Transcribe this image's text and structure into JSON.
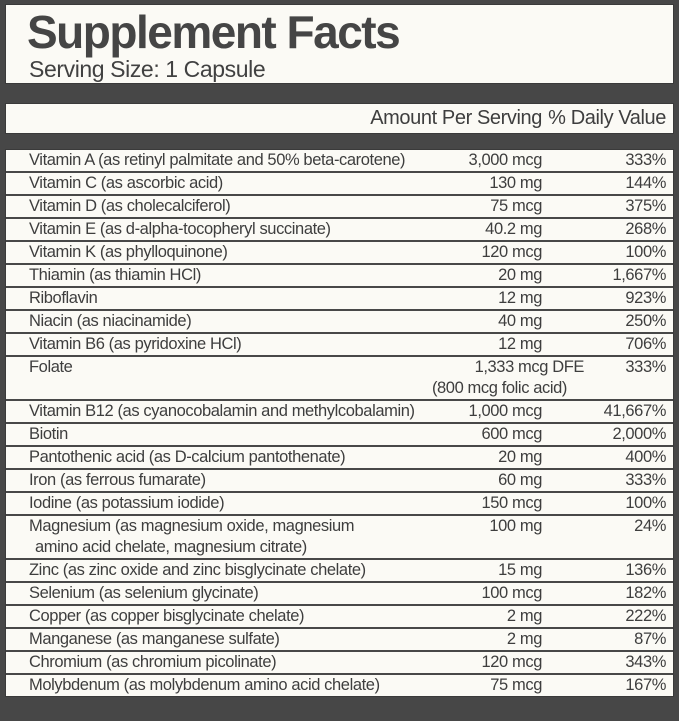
{
  "header": {
    "title": "Supplement Facts",
    "serving_size": "Serving Size: 1 Capsule"
  },
  "colors": {
    "frame": "#474747",
    "panel_background": "#fbfaf5",
    "text": "#3e3e3e",
    "separator": "#484848"
  },
  "table": {
    "header": {
      "amount": "Amount Per Serving",
      "dv": "% Daily Value"
    },
    "rows": [
      {
        "name": "Vitamin A (as retinyl palmitate and 50% beta-carotene)",
        "amount": "3,000 mcg",
        "dv": "333%"
      },
      {
        "name": "Vitamin C (as ascorbic acid)",
        "amount": "130 mg",
        "dv": "144%"
      },
      {
        "name": "Vitamin D (as cholecalciferol)",
        "amount": "75 mcg",
        "dv": "375%"
      },
      {
        "name": "Vitamin E (as d-alpha-tocopheryl succinate)",
        "amount": "40.2 mg",
        "dv": "268%"
      },
      {
        "name": "Vitamin K (as phylloquinone)",
        "amount": "120 mcg",
        "dv": "100%"
      },
      {
        "name": "Thiamin (as thiamin HCl)",
        "amount": "20 mg",
        "dv": "1,667%"
      },
      {
        "name": "Riboflavin",
        "amount": "12 mg",
        "dv": "923%"
      },
      {
        "name": "Niacin (as niacinamide)",
        "amount": "40 mg",
        "dv": "250%"
      },
      {
        "name": "Vitamin B6 (as pyridoxine HCl)",
        "amount": "12 mg",
        "dv": "706%"
      },
      {
        "name": "Folate",
        "amount": "1,333 mcg DFE",
        "amount2": "(800 mcg folic acid)",
        "dv": "333%"
      },
      {
        "name": "Vitamin B12 (as cyanocobalamin and methylcobalamin)",
        "amount": "1,000 mcg",
        "dv": "41,667%"
      },
      {
        "name": "Biotin",
        "amount": "600 mcg",
        "dv": "2,000%"
      },
      {
        "name": "Pantothenic acid (as D-calcium pantothenate)",
        "amount": "20 mg",
        "dv": "400%"
      },
      {
        "name": "Iron (as ferrous fumarate)",
        "amount": "60 mg",
        "dv": "333%"
      },
      {
        "name": "Iodine (as potassium iodide)",
        "amount": "150 mcg",
        "dv": "100%"
      },
      {
        "name": "Magnesium (as magnesium oxide, magnesium",
        "name2": "amino acid chelate, magnesium citrate)",
        "amount": "100 mg",
        "dv": "24%"
      },
      {
        "name": "Zinc (as zinc oxide and zinc bisglycinate chelate)",
        "amount": "15 mg",
        "dv": "136%"
      },
      {
        "name": "Selenium (as selenium glycinate)",
        "amount": "100 mcg",
        "dv": "182%"
      },
      {
        "name": "Copper (as copper bisglycinate chelate)",
        "amount": "2 mg",
        "dv": "222%"
      },
      {
        "name": "Manganese (as manganese sulfate)",
        "amount": "2 mg",
        "dv": "87%"
      },
      {
        "name": "Chromium (as chromium picolinate)",
        "amount": "120 mcg",
        "dv": "343%"
      },
      {
        "name": "Molybdenum (as molybdenum amino acid chelate)",
        "amount": "75 mcg",
        "dv": "167%"
      }
    ]
  }
}
